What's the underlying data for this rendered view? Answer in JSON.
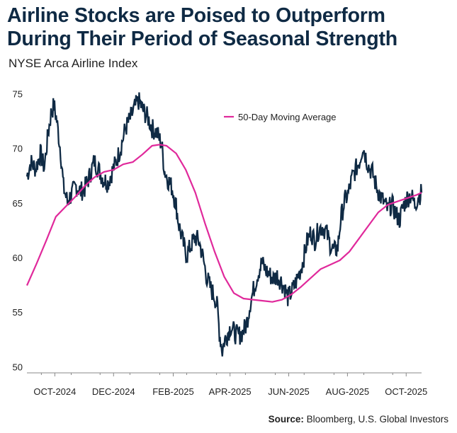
{
  "header": {
    "title_line1": "Airline Stocks are Poised to Outperform",
    "title_line2": "During Their Period of Seasonal Strength",
    "subtitle": "NYSE Arca Airline Index"
  },
  "source": {
    "label": "Source:",
    "text": " Bloomberg, U.S. Global Investors"
  },
  "colors": {
    "price": "#0f2a44",
    "moving_average": "#e0299b",
    "axis": "#888888"
  },
  "chart_data": {
    "type": "line",
    "title": "NYSE Arca Airline Index",
    "xlabel": "",
    "ylabel": "",
    "ylim": [
      49.5,
      76
    ],
    "yticks": [
      50,
      55,
      60,
      65,
      70,
      75
    ],
    "x_range": [
      "2024-09-16",
      "2025-10-31"
    ],
    "xticks": [
      {
        "date": "2024-10-15",
        "label": "OCT-2024"
      },
      {
        "date": "2024-12-15",
        "label": "DEC-2024"
      },
      {
        "date": "2025-02-15",
        "label": "FEB-2025"
      },
      {
        "date": "2025-04-15",
        "label": "APR-2025"
      },
      {
        "date": "2025-06-15",
        "label": "JUN-2025"
      },
      {
        "date": "2025-08-15",
        "label": "AUG-2025"
      },
      {
        "date": "2025-10-15",
        "label": "OCT-2025"
      }
    ],
    "legend": {
      "position": "top-right",
      "entries": [
        "50-Day Moving Average"
      ]
    },
    "grid": false,
    "series": [
      {
        "name": "NYSE Arca Airline Index",
        "points": [
          [
            "2024-09-16",
            67.5
          ],
          [
            "2024-09-20",
            68.8
          ],
          [
            "2024-09-25",
            68.2
          ],
          [
            "2024-09-30",
            69.6
          ],
          [
            "2024-10-04",
            68.3
          ],
          [
            "2024-10-08",
            71.4
          ],
          [
            "2024-10-11",
            73.2
          ],
          [
            "2024-10-14",
            74.0
          ],
          [
            "2024-10-17",
            72.6
          ],
          [
            "2024-10-21",
            69.8
          ],
          [
            "2024-10-24",
            66.5
          ],
          [
            "2024-10-28",
            65.2
          ],
          [
            "2024-11-01",
            65.8
          ],
          [
            "2024-11-06",
            66.6
          ],
          [
            "2024-11-11",
            66.1
          ],
          [
            "2024-11-15",
            66.4
          ],
          [
            "2024-11-20",
            67.5
          ],
          [
            "2024-11-25",
            68.9
          ],
          [
            "2024-11-29",
            68.2
          ],
          [
            "2024-12-04",
            67.3
          ],
          [
            "2024-12-09",
            66.9
          ],
          [
            "2024-12-13",
            67.8
          ],
          [
            "2024-12-18",
            68.9
          ],
          [
            "2024-12-23",
            70.3
          ],
          [
            "2024-12-27",
            71.8
          ],
          [
            "2025-01-02",
            72.9
          ],
          [
            "2025-01-06",
            73.8
          ],
          [
            "2025-01-10",
            74.4
          ],
          [
            "2025-01-15",
            73.5
          ],
          [
            "2025-01-20",
            72.8
          ],
          [
            "2025-01-24",
            71.9
          ],
          [
            "2025-01-29",
            71.5
          ],
          [
            "2025-02-03",
            70.4
          ],
          [
            "2025-02-06",
            68.0
          ],
          [
            "2025-02-10",
            67.1
          ],
          [
            "2025-02-14",
            66.4
          ],
          [
            "2025-02-18",
            64.8
          ],
          [
            "2025-02-21",
            63.0
          ],
          [
            "2025-02-25",
            61.5
          ],
          [
            "2025-03-01",
            60.2
          ],
          [
            "2025-03-05",
            61.1
          ],
          [
            "2025-03-10",
            61.9
          ],
          [
            "2025-03-14",
            61.5
          ],
          [
            "2025-03-18",
            60.0
          ],
          [
            "2025-03-22",
            58.2
          ],
          [
            "2025-03-26",
            57.2
          ],
          [
            "2025-03-30",
            56.5
          ],
          [
            "2025-04-02",
            55.4
          ],
          [
            "2025-04-04",
            53.2
          ],
          [
            "2025-04-07",
            51.5
          ],
          [
            "2025-04-09",
            52.4
          ],
          [
            "2025-04-12",
            53.0
          ],
          [
            "2025-04-16",
            53.8
          ],
          [
            "2025-04-20",
            53.1
          ],
          [
            "2025-04-24",
            52.9
          ],
          [
            "2025-04-28",
            53.2
          ],
          [
            "2025-05-02",
            53.9
          ],
          [
            "2025-05-06",
            55.9
          ],
          [
            "2025-05-10",
            57.3
          ],
          [
            "2025-05-14",
            58.6
          ],
          [
            "2025-05-18",
            59.6
          ],
          [
            "2025-05-22",
            58.9
          ],
          [
            "2025-05-26",
            58.5
          ],
          [
            "2025-05-30",
            58.1
          ],
          [
            "2025-06-03",
            58.4
          ],
          [
            "2025-06-07",
            57.9
          ],
          [
            "2025-06-11",
            57.2
          ],
          [
            "2025-06-14",
            56.4
          ],
          [
            "2025-06-18",
            56.9
          ],
          [
            "2025-06-22",
            57.7
          ],
          [
            "2025-06-26",
            58.6
          ],
          [
            "2025-06-30",
            59.8
          ],
          [
            "2025-07-04",
            61.5
          ],
          [
            "2025-07-08",
            62.4
          ],
          [
            "2025-07-12",
            61.6
          ],
          [
            "2025-07-16",
            62.6
          ],
          [
            "2025-07-20",
            62.9
          ],
          [
            "2025-07-24",
            62.4
          ],
          [
            "2025-07-28",
            61.3
          ],
          [
            "2025-08-01",
            60.6
          ],
          [
            "2025-08-05",
            61.0
          ],
          [
            "2025-08-08",
            63.6
          ],
          [
            "2025-08-12",
            65.2
          ],
          [
            "2025-08-16",
            66.0
          ],
          [
            "2025-08-20",
            67.4
          ],
          [
            "2025-08-24",
            68.2
          ],
          [
            "2025-08-28",
            69.0
          ],
          [
            "2025-08-31",
            70.3
          ],
          [
            "2025-09-03",
            69.3
          ],
          [
            "2025-09-06",
            68.4
          ],
          [
            "2025-09-10",
            67.8
          ],
          [
            "2025-09-14",
            66.6
          ],
          [
            "2025-09-18",
            65.7
          ],
          [
            "2025-09-22",
            65.1
          ],
          [
            "2025-09-26",
            64.4
          ],
          [
            "2025-09-30",
            65.0
          ],
          [
            "2025-10-04",
            64.1
          ],
          [
            "2025-10-08",
            63.5
          ],
          [
            "2025-10-12",
            64.8
          ],
          [
            "2025-10-16",
            65.5
          ],
          [
            "2025-10-20",
            65.8
          ],
          [
            "2025-10-24",
            64.9
          ],
          [
            "2025-10-28",
            65.7
          ],
          [
            "2025-10-31",
            66.0
          ]
        ]
      },
      {
        "name": "50-Day Moving Average",
        "points": [
          [
            "2024-09-16",
            57.5
          ],
          [
            "2024-09-26",
            59.5
          ],
          [
            "2024-10-06",
            61.6
          ],
          [
            "2024-10-16",
            63.8
          ],
          [
            "2024-10-26",
            64.7
          ],
          [
            "2024-11-05",
            65.6
          ],
          [
            "2024-11-15",
            66.6
          ],
          [
            "2024-11-25",
            67.4
          ],
          [
            "2024-12-05",
            67.9
          ],
          [
            "2024-12-15",
            68.1
          ],
          [
            "2024-12-25",
            68.6
          ],
          [
            "2025-01-04",
            68.8
          ],
          [
            "2025-01-14",
            69.5
          ],
          [
            "2025-01-24",
            70.3
          ],
          [
            "2025-02-01",
            70.4
          ],
          [
            "2025-02-08",
            70.3
          ],
          [
            "2025-02-18",
            69.6
          ],
          [
            "2025-02-28",
            68.1
          ],
          [
            "2025-03-10",
            66.0
          ],
          [
            "2025-03-20",
            63.2
          ],
          [
            "2025-03-30",
            60.6
          ],
          [
            "2025-04-09",
            58.3
          ],
          [
            "2025-04-19",
            56.8
          ],
          [
            "2025-04-29",
            56.3
          ],
          [
            "2025-05-09",
            56.2
          ],
          [
            "2025-05-19",
            56.1
          ],
          [
            "2025-05-29",
            56.0
          ],
          [
            "2025-06-08",
            56.2
          ],
          [
            "2025-06-18",
            56.7
          ],
          [
            "2025-06-28",
            57.4
          ],
          [
            "2025-07-08",
            58.2
          ],
          [
            "2025-07-18",
            59.0
          ],
          [
            "2025-07-28",
            59.4
          ],
          [
            "2025-08-07",
            59.8
          ],
          [
            "2025-08-17",
            60.6
          ],
          [
            "2025-08-27",
            61.8
          ],
          [
            "2025-09-06",
            63.0
          ],
          [
            "2025-09-16",
            64.2
          ],
          [
            "2025-09-26",
            64.9
          ],
          [
            "2025-10-06",
            65.2
          ],
          [
            "2025-10-16",
            65.5
          ],
          [
            "2025-10-26",
            65.8
          ],
          [
            "2025-10-31",
            66.0
          ]
        ]
      }
    ]
  }
}
